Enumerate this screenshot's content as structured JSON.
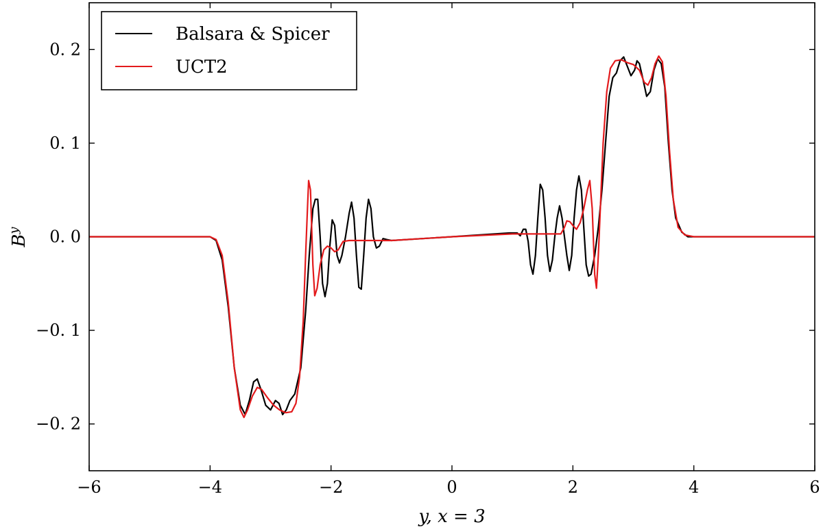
{
  "chart_data": {
    "type": "line",
    "title": "",
    "xlabel": "y,  x = 3",
    "ylabel": "B^y",
    "ylabel_base": "B",
    "ylabel_sup": "y",
    "xlim": [
      -6,
      6
    ],
    "ylim": [
      -0.25,
      0.25
    ],
    "xticks": [
      -6,
      -4,
      -2,
      0,
      2,
      4,
      6
    ],
    "xtick_labels": [
      "−6",
      "−4",
      "−2",
      "0",
      "2",
      "4",
      "6"
    ],
    "yticks": [
      -0.2,
      -0.1,
      0.0,
      0.1,
      0.2
    ],
    "ytick_labels": [
      "−0. 2",
      "−0. 1",
      "0. 0",
      "0. 1",
      "0. 2"
    ],
    "grid": false,
    "legend_position": "top-left",
    "series": [
      {
        "name": "Balsara & Spicer",
        "color": "#000000",
        "points": [
          [
            -6,
            0
          ],
          [
            -4.0,
            0
          ],
          [
            -3.9,
            -0.004
          ],
          [
            -3.8,
            -0.025
          ],
          [
            -3.7,
            -0.075
          ],
          [
            -3.6,
            -0.14
          ],
          [
            -3.5,
            -0.18
          ],
          [
            -3.42,
            -0.19
          ],
          [
            -3.35,
            -0.175
          ],
          [
            -3.28,
            -0.155
          ],
          [
            -3.22,
            -0.152
          ],
          [
            -3.15,
            -0.165
          ],
          [
            -3.08,
            -0.18
          ],
          [
            -3.0,
            -0.185
          ],
          [
            -2.92,
            -0.175
          ],
          [
            -2.86,
            -0.178
          ],
          [
            -2.8,
            -0.19
          ],
          [
            -2.74,
            -0.185
          ],
          [
            -2.68,
            -0.175
          ],
          [
            -2.6,
            -0.168
          ],
          [
            -2.5,
            -0.14
          ],
          [
            -2.42,
            -0.08
          ],
          [
            -2.36,
            -0.02
          ],
          [
            -2.3,
            0.03
          ],
          [
            -2.26,
            0.04
          ],
          [
            -2.22,
            0.04
          ],
          [
            -2.18,
            0.0
          ],
          [
            -2.14,
            -0.05
          ],
          [
            -2.1,
            -0.064
          ],
          [
            -2.06,
            -0.05
          ],
          [
            -2.02,
            -0.01
          ],
          [
            -1.98,
            0.018
          ],
          [
            -1.94,
            0.012
          ],
          [
            -1.9,
            -0.02
          ],
          [
            -1.86,
            -0.028
          ],
          [
            -1.82,
            -0.02
          ],
          [
            -1.76,
            0.0
          ],
          [
            -1.7,
            0.025
          ],
          [
            -1.66,
            0.037
          ],
          [
            -1.62,
            0.02
          ],
          [
            -1.58,
            -0.02
          ],
          [
            -1.54,
            -0.054
          ],
          [
            -1.5,
            -0.056
          ],
          [
            -1.46,
            -0.02
          ],
          [
            -1.42,
            0.02
          ],
          [
            -1.38,
            0.04
          ],
          [
            -1.34,
            0.03
          ],
          [
            -1.3,
            0.0
          ],
          [
            -1.25,
            -0.012
          ],
          [
            -1.2,
            -0.01
          ],
          [
            -1.14,
            -0.002
          ],
          [
            -1.08,
            -0.003
          ],
          [
            -1.0,
            -0.004
          ],
          [
            0.0,
            0.0
          ],
          [
            0.95,
            0.004
          ],
          [
            1.02,
            0.004
          ],
          [
            1.08,
            0.004
          ],
          [
            1.13,
            0.001
          ],
          [
            1.18,
            0.008
          ],
          [
            1.22,
            0.008
          ],
          [
            1.26,
            -0.005
          ],
          [
            1.3,
            -0.03
          ],
          [
            1.34,
            -0.04
          ],
          [
            1.38,
            -0.02
          ],
          [
            1.42,
            0.02
          ],
          [
            1.46,
            0.056
          ],
          [
            1.5,
            0.05
          ],
          [
            1.54,
            0.02
          ],
          [
            1.58,
            -0.02
          ],
          [
            1.62,
            -0.037
          ],
          [
            1.66,
            -0.025
          ],
          [
            1.7,
            0.0
          ],
          [
            1.74,
            0.02
          ],
          [
            1.78,
            0.033
          ],
          [
            1.82,
            0.02
          ],
          [
            1.86,
            0.0
          ],
          [
            1.9,
            -0.02
          ],
          [
            1.94,
            -0.036
          ],
          [
            1.98,
            -0.02
          ],
          [
            2.02,
            0.02
          ],
          [
            2.06,
            0.05
          ],
          [
            2.1,
            0.065
          ],
          [
            2.14,
            0.05
          ],
          [
            2.18,
            0.01
          ],
          [
            2.22,
            -0.03
          ],
          [
            2.26,
            -0.042
          ],
          [
            2.3,
            -0.04
          ],
          [
            2.36,
            -0.02
          ],
          [
            2.42,
            0.01
          ],
          [
            2.48,
            0.05
          ],
          [
            2.54,
            0.1
          ],
          [
            2.6,
            0.15
          ],
          [
            2.66,
            0.17
          ],
          [
            2.72,
            0.175
          ],
          [
            2.78,
            0.188
          ],
          [
            2.84,
            0.192
          ],
          [
            2.9,
            0.182
          ],
          [
            2.96,
            0.172
          ],
          [
            3.02,
            0.178
          ],
          [
            3.06,
            0.188
          ],
          [
            3.1,
            0.185
          ],
          [
            3.16,
            0.168
          ],
          [
            3.22,
            0.15
          ],
          [
            3.28,
            0.155
          ],
          [
            3.34,
            0.178
          ],
          [
            3.4,
            0.19
          ],
          [
            3.46,
            0.185
          ],
          [
            3.52,
            0.16
          ],
          [
            3.58,
            0.1
          ],
          [
            3.64,
            0.05
          ],
          [
            3.7,
            0.02
          ],
          [
            3.8,
            0.005
          ],
          [
            3.9,
            0.0
          ],
          [
            6,
            0
          ]
        ]
      },
      {
        "name": "UCT2",
        "color": "#e31a1c",
        "points": [
          [
            -6,
            0
          ],
          [
            -4.0,
            0
          ],
          [
            -3.9,
            -0.003
          ],
          [
            -3.8,
            -0.02
          ],
          [
            -3.7,
            -0.07
          ],
          [
            -3.6,
            -0.14
          ],
          [
            -3.5,
            -0.185
          ],
          [
            -3.44,
            -0.193
          ],
          [
            -3.38,
            -0.185
          ],
          [
            -3.3,
            -0.17
          ],
          [
            -3.22,
            -0.161
          ],
          [
            -3.15,
            -0.163
          ],
          [
            -3.05,
            -0.172
          ],
          [
            -2.95,
            -0.18
          ],
          [
            -2.85,
            -0.185
          ],
          [
            -2.75,
            -0.188
          ],
          [
            -2.65,
            -0.187
          ],
          [
            -2.58,
            -0.178
          ],
          [
            -2.52,
            -0.15
          ],
          [
            -2.46,
            -0.09
          ],
          [
            -2.42,
            -0.02
          ],
          [
            -2.39,
            0.03
          ],
          [
            -2.37,
            0.06
          ],
          [
            -2.34,
            0.05
          ],
          [
            -2.3,
            -0.03
          ],
          [
            -2.27,
            -0.063
          ],
          [
            -2.23,
            -0.055
          ],
          [
            -2.18,
            -0.03
          ],
          [
            -2.12,
            -0.014
          ],
          [
            -2.06,
            -0.01
          ],
          [
            -2.0,
            -0.012
          ],
          [
            -1.94,
            -0.016
          ],
          [
            -1.88,
            -0.014
          ],
          [
            -1.8,
            -0.005
          ],
          [
            -1.7,
            -0.004
          ],
          [
            -1.0,
            -0.004
          ],
          [
            0.0,
            0.0
          ],
          [
            1.0,
            0.003
          ],
          [
            1.8,
            0.003
          ],
          [
            1.86,
            0.01
          ],
          [
            1.9,
            0.017
          ],
          [
            1.95,
            0.016
          ],
          [
            2.0,
            0.012
          ],
          [
            2.06,
            0.008
          ],
          [
            2.12,
            0.015
          ],
          [
            2.18,
            0.03
          ],
          [
            2.24,
            0.05
          ],
          [
            2.28,
            0.06
          ],
          [
            2.32,
            0.03
          ],
          [
            2.36,
            -0.04
          ],
          [
            2.39,
            -0.055
          ],
          [
            2.42,
            -0.02
          ],
          [
            2.46,
            0.04
          ],
          [
            2.5,
            0.1
          ],
          [
            2.56,
            0.155
          ],
          [
            2.62,
            0.18
          ],
          [
            2.7,
            0.188
          ],
          [
            2.8,
            0.189
          ],
          [
            2.9,
            0.186
          ],
          [
            3.0,
            0.184
          ],
          [
            3.1,
            0.178
          ],
          [
            3.18,
            0.165
          ],
          [
            3.24,
            0.162
          ],
          [
            3.3,
            0.17
          ],
          [
            3.36,
            0.185
          ],
          [
            3.42,
            0.193
          ],
          [
            3.48,
            0.187
          ],
          [
            3.54,
            0.15
          ],
          [
            3.6,
            0.09
          ],
          [
            3.66,
            0.04
          ],
          [
            3.74,
            0.01
          ],
          [
            3.85,
            0.002
          ],
          [
            4.0,
            0.0
          ],
          [
            6,
            0
          ]
        ]
      }
    ]
  }
}
